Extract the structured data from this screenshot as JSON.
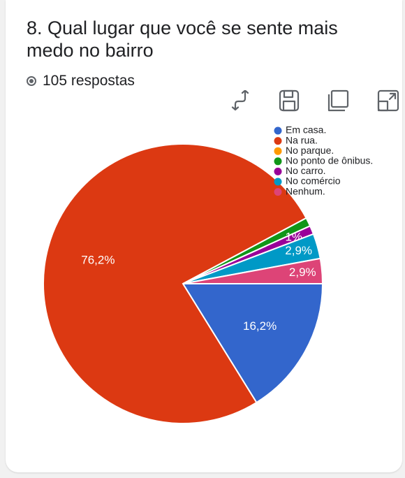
{
  "question": {
    "title": "8.  Qual lugar que você se sente mais medo no bairro",
    "responses": "105 respostas"
  },
  "toolbar": {
    "icons": [
      "swap-icon",
      "save-icon",
      "copy-icon",
      "expand-icon"
    ]
  },
  "colors": {
    "em_casa": "#3366cc",
    "na_rua": "#dc3912",
    "no_parque": "#ff9900",
    "no_ponto": "#109618",
    "no_carro": "#990099",
    "no_comercio": "#0099c6",
    "nenhum": "#dd4477"
  },
  "chart_data": {
    "type": "pie",
    "categories": [
      "Em casa.",
      "Na rua.",
      "No parque.",
      "No ponto de ônibus.",
      "No carro.",
      "No comércio",
      "Nenhum."
    ],
    "values": [
      16.2,
      76.2,
      0,
      1,
      1,
      2.9,
      2.9
    ],
    "data_labels": [
      "16,2%",
      "76,2%",
      "",
      "",
      "1%",
      "2,9%",
      "2,9%"
    ],
    "legend_position": "top-right"
  }
}
